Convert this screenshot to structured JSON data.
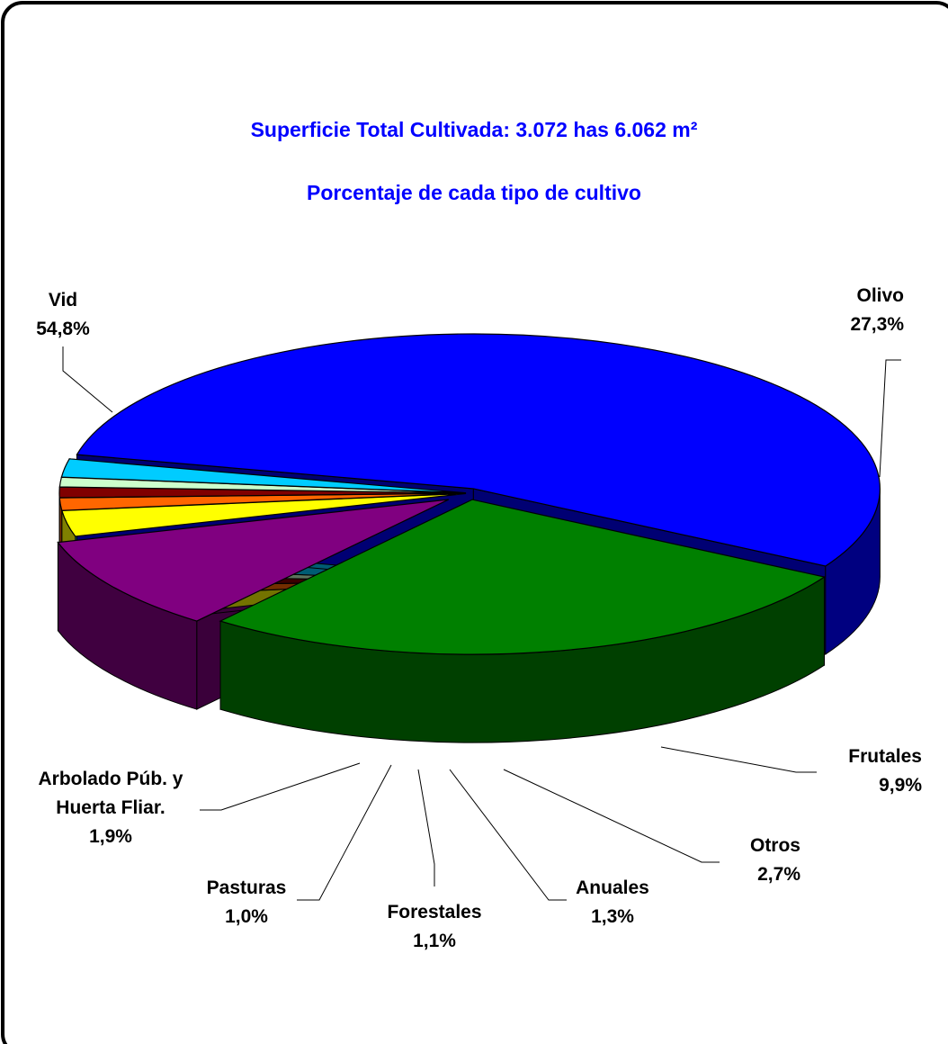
{
  "chart_data": {
    "type": "pie",
    "variant": "3d-exploded",
    "title": "Superficie Total Cultivada: 3.072 has 6.062 m²",
    "subtitle": "Porcentaje de cada tipo de cultivo",
    "legend": "none",
    "slices": [
      {
        "label_lines": [
          "Olivo"
        ],
        "value_label": "27,3%",
        "value": 27.3,
        "color": "#008000"
      },
      {
        "label_lines": [
          "Frutales"
        ],
        "value_label": "9,9%",
        "value": 9.9,
        "color": "#800080"
      },
      {
        "label_lines": [
          "Otros"
        ],
        "value_label": "2,7%",
        "value": 2.7,
        "color": "#FFFF00"
      },
      {
        "label_lines": [
          "Anuales"
        ],
        "value_label": "1,3%",
        "value": 1.3,
        "color": "#FF6600"
      },
      {
        "label_lines": [
          "Forestales"
        ],
        "value_label": "1,1%",
        "value": 1.1,
        "color": "#800000"
      },
      {
        "label_lines": [
          "Pasturas"
        ],
        "value_label": "1,0%",
        "value": 1.0,
        "color": "#CCFFCC"
      },
      {
        "label_lines": [
          "Arbolado Púb. y",
          "Huerta Fliar."
        ],
        "value_label": "1,9%",
        "value": 1.9,
        "color": "#00CCFF"
      },
      {
        "label_lines": [
          "Vid"
        ],
        "value_label": "54,8%",
        "value": 54.8,
        "color": "#0000FF"
      }
    ]
  }
}
